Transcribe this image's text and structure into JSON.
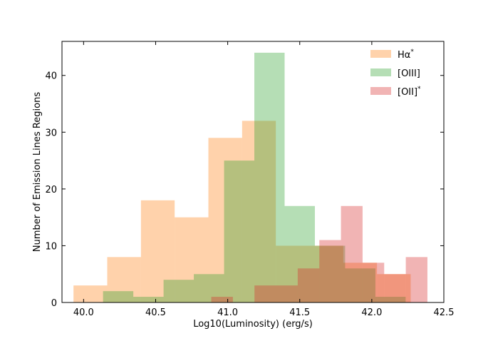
{
  "chart_data": {
    "type": "bar",
    "subtype": "histogram",
    "xlabel": "Log10(Luminosity) (erg/s)",
    "ylabel": "Number of Emission Lines Regions",
    "xlim": [
      39.85,
      42.5
    ],
    "ylim": [
      0,
      46
    ],
    "xticks": [
      40.0,
      40.5,
      41.0,
      41.5,
      42.0,
      42.5
    ],
    "xtick_labels": [
      "40.0",
      "40.5",
      "41.0",
      "41.5",
      "42.0",
      "42.5"
    ],
    "yticks": [
      0,
      10,
      20,
      30,
      40
    ],
    "ytick_labels": [
      "0",
      "10",
      "20",
      "30",
      "40"
    ],
    "tick_direction": "in",
    "grid": false,
    "legend_position": "top-right",
    "alpha": 0.35,
    "series": [
      {
        "name": "Hα*",
        "legend_base": "Hα",
        "legend_sup": "*",
        "color": "#ff7f0e",
        "bin_edges": [
          39.93,
          40.164,
          40.398,
          40.632,
          40.866,
          41.1,
          41.334,
          41.568,
          41.802,
          42.036,
          42.27
        ],
        "counts": [
          3,
          8,
          18,
          15,
          29,
          32,
          10,
          10,
          7,
          5
        ]
      },
      {
        "name": "[OIII]",
        "legend_base": "[OIII]",
        "legend_sup": "",
        "color": "#2ca02c",
        "bin_edges": [
          40.135,
          40.345,
          40.555,
          40.765,
          40.975,
          41.185,
          41.395,
          41.605,
          41.815,
          42.025,
          42.235
        ],
        "counts": [
          2,
          1,
          4,
          5,
          25,
          44,
          17,
          10,
          6,
          1
        ]
      },
      {
        "name": "[OII]*",
        "legend_base": "[OII]",
        "legend_sup": "*",
        "color": "#d62728",
        "bin_edges": [
          40.886,
          41.036,
          41.186,
          41.336,
          41.486,
          41.636,
          41.786,
          41.936,
          42.086,
          42.236,
          42.386
        ],
        "counts": [
          1,
          0,
          3,
          3,
          6,
          11,
          17,
          7,
          5,
          8
        ]
      }
    ]
  }
}
